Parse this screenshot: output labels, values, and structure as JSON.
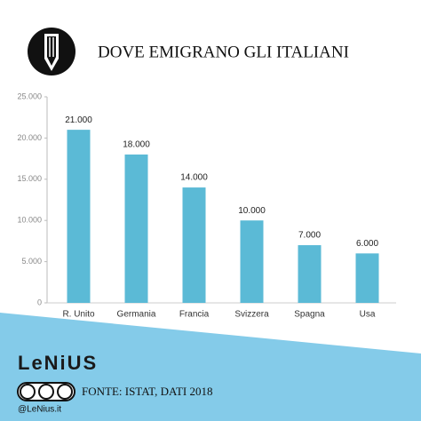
{
  "chart_data": {
    "type": "bar",
    "title": "DOVE EMIGRANO GLI ITALIANI",
    "categories": [
      "R. Unito",
      "Germania",
      "Francia",
      "Svizzera",
      "Spagna",
      "Usa"
    ],
    "values": [
      21000,
      18000,
      14000,
      10000,
      7000,
      6000
    ],
    "value_labels": [
      "21.000",
      "18.000",
      "14.000",
      "10.000",
      "7.000",
      "6.000"
    ],
    "color": "#5bbad6",
    "ylim": [
      0,
      25000
    ],
    "yticks": [
      {
        "value": 0,
        "label": "0"
      },
      {
        "value": 5000,
        "label": "5.000"
      },
      {
        "value": 10000,
        "label": "10.000"
      },
      {
        "value": 15000,
        "label": "15.000"
      },
      {
        "value": 20000,
        "label": "20.000"
      },
      {
        "value": 25000,
        "label": "25.000"
      }
    ],
    "grid": false
  },
  "footer": {
    "logo": "LeNiUS",
    "source": "FONTE: ISTAT, DATI 2018",
    "handle": "@LeNius.it"
  }
}
